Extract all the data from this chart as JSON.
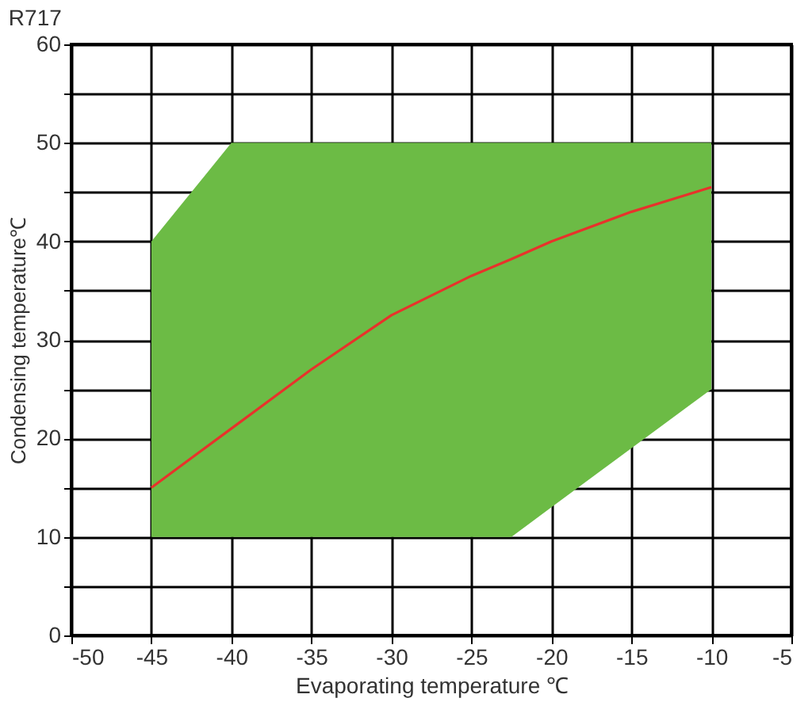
{
  "chart_data": {
    "type": "line",
    "title": "R717",
    "xlabel": "Evaporating temperature ℃",
    "ylabel": "Condensing temperature℃",
    "xlim": [
      -50,
      -5
    ],
    "xticks": [
      -50,
      -45,
      -40,
      -35,
      -30,
      -25,
      -20,
      -15,
      -10,
      -5
    ],
    "ylim": [
      0,
      60
    ],
    "yticks": [
      0,
      {
        "value": 5,
        "label": null
      },
      10,
      {
        "value": 15,
        "label": null
      },
      20,
      {
        "value": 25,
        "label": null
      },
      30,
      {
        "value": 35,
        "label": null
      },
      40,
      {
        "value": 45,
        "label": null
      },
      50,
      {
        "value": 55,
        "label": null
      },
      60
    ],
    "grid": true,
    "series": [
      {
        "color": "#e8322b",
        "x": [
          -45,
          -40,
          -35,
          -30,
          -25,
          -22.5,
          -20,
          -15,
          -10
        ],
        "values": [
          15,
          21,
          27,
          32.5,
          36.5,
          38.2,
          40,
          43,
          45.5
        ],
        "lower": [
          10,
          10,
          10,
          10,
          10,
          10,
          13,
          19,
          25
        ],
        "upper": [
          40,
          50,
          50,
          50,
          50,
          50,
          50,
          50,
          50
        ]
      }
    ]
  }
}
